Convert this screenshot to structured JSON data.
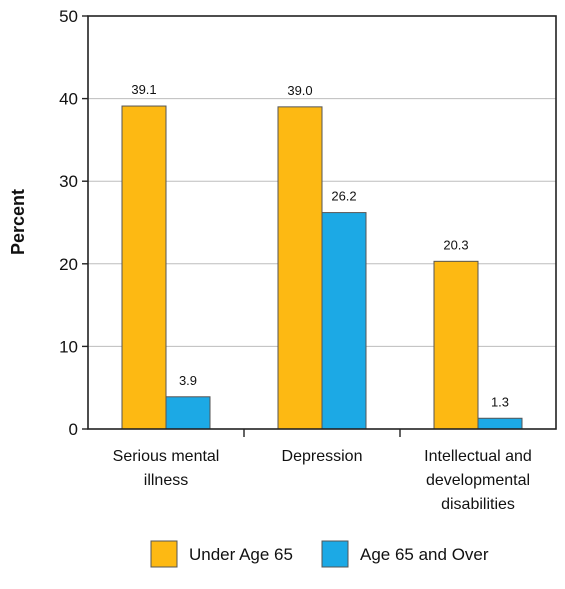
{
  "chart_data": {
    "type": "bar",
    "ylabel": "Percent",
    "xlabel": "",
    "ylim": [
      0,
      50
    ],
    "yticks": [
      0,
      10,
      20,
      30,
      40,
      50
    ],
    "grid": true,
    "legend_position": "bottom",
    "categories": [
      [
        "Serious mental",
        "illness"
      ],
      [
        "Depression"
      ],
      [
        "Intellectual and",
        "developmental",
        "disabilities"
      ]
    ],
    "series": [
      {
        "name": "Under Age 65",
        "color": "#FDB913",
        "values": [
          39.1,
          39.0,
          20.3
        ],
        "labels": [
          "39.1",
          "39.0",
          "20.3"
        ]
      },
      {
        "name": "Age 65 and Over",
        "color": "#1CA9E5",
        "values": [
          3.9,
          26.2,
          1.3
        ],
        "labels": [
          "3.9",
          "26.2",
          "1.3"
        ]
      }
    ]
  }
}
